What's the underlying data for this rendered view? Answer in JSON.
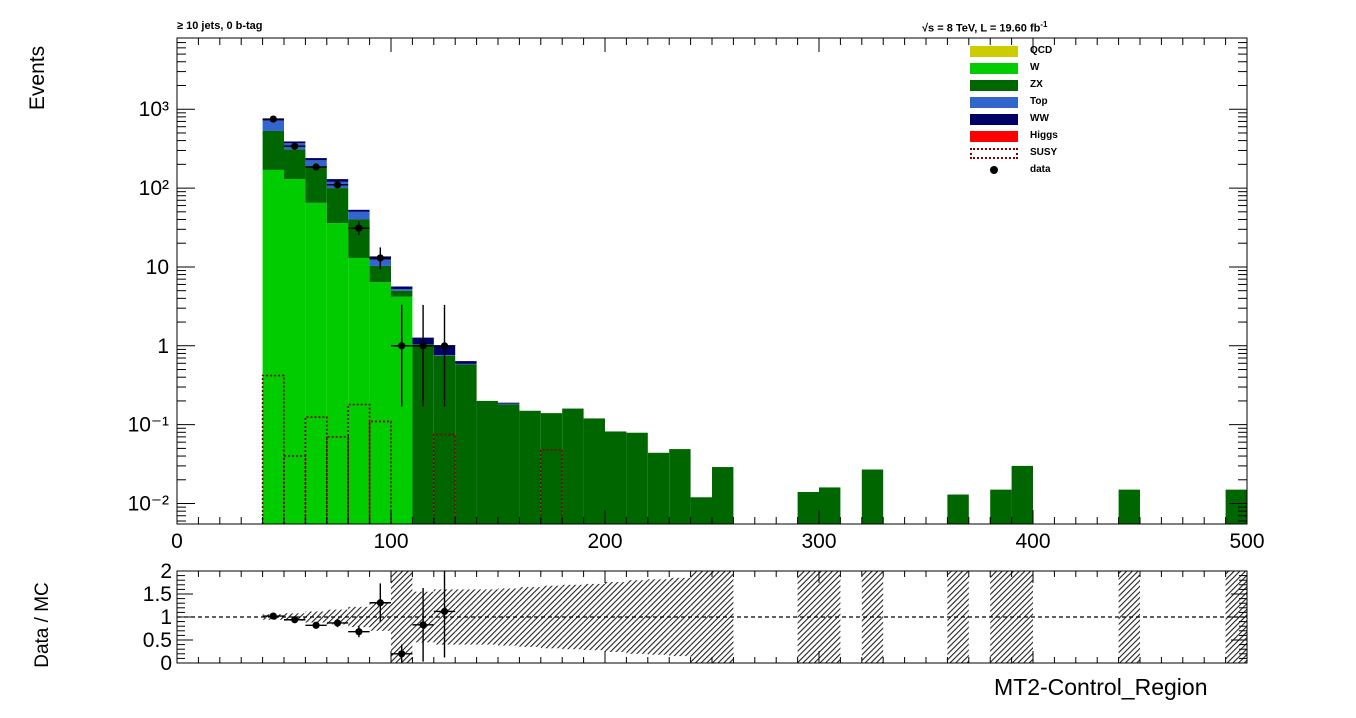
{
  "header": {
    "left": "≥ 10 jets, 0 b-tag",
    "right_prefix": "√s = 8 TeV, L = 19.60 fb",
    "right_sup": "-1"
  },
  "chart_data": [
    {
      "type": "bar",
      "subtype": "stacked-histogram-log",
      "ylabel": "Events",
      "yscale": "log",
      "ylim": [
        0.0055,
        8000
      ],
      "xlim": [
        0,
        500
      ],
      "x_ticks": [
        "0",
        "100",
        "200",
        "300",
        "400",
        "500"
      ],
      "y_ticks": [
        "10⁻²",
        "10⁻¹",
        "1",
        "10",
        "10²",
        "10³"
      ],
      "bin_width": 10,
      "bin_low_edges": [
        40,
        50,
        60,
        70,
        80,
        90,
        100,
        110,
        120,
        130,
        140,
        150,
        160,
        170,
        180,
        190,
        200,
        210,
        220,
        230,
        240,
        250,
        260,
        270,
        280,
        290,
        300,
        310,
        320,
        330,
        340,
        350,
        360,
        370,
        380,
        390,
        400,
        410,
        420,
        430,
        440,
        450,
        460,
        470,
        480,
        490
      ],
      "series": [
        {
          "name": "QCD",
          "color": "#cccc00",
          "values": [
            0,
            0,
            0,
            0,
            0,
            0,
            0,
            0,
            0,
            0,
            0,
            0,
            0,
            0,
            0,
            0,
            0,
            0,
            0,
            0,
            0,
            0,
            0,
            0,
            0,
            0,
            0,
            0,
            0,
            0,
            0,
            0,
            0,
            0,
            0,
            0,
            0,
            0,
            0,
            0,
            0,
            0,
            0,
            0,
            0,
            0
          ]
        },
        {
          "name": "W",
          "color": "#00cc00",
          "values": [
            170,
            130,
            65,
            36,
            13,
            6.4,
            4.2,
            0,
            0,
            0,
            0,
            0,
            0,
            0,
            0,
            0,
            0,
            0,
            0,
            0,
            0,
            0,
            0,
            0,
            0,
            0,
            0,
            0,
            0,
            0,
            0,
            0,
            0,
            0,
            0,
            0,
            0,
            0,
            0,
            0,
            0,
            0,
            0,
            0,
            0,
            0
          ]
        },
        {
          "name": "ZX",
          "color": "#006600",
          "values": [
            360,
            180,
            120,
            64,
            27,
            3.9,
            0.8,
            1.05,
            0.75,
            0.58,
            0.2,
            0.18,
            0.15,
            0.14,
            0.16,
            0.12,
            0.082,
            0.079,
            0.044,
            0.049,
            0.012,
            0.029,
            0,
            0,
            0,
            0.014,
            0.016,
            0,
            0.027,
            0,
            0,
            0,
            0.013,
            0,
            0.015,
            0.03,
            0,
            0,
            0,
            0,
            0.015,
            0,
            0,
            0,
            0,
            0.015
          ]
        },
        {
          "name": "Top",
          "color": "#3366cc",
          "values": [
            190,
            60,
            40,
            20,
            10,
            2.1,
            0.25,
            0,
            0.01,
            0.01,
            0,
            0.005,
            0,
            0,
            0,
            0,
            0,
            0,
            0,
            0,
            0,
            0,
            0,
            0,
            0,
            0,
            0,
            0,
            0,
            0,
            0,
            0,
            0,
            0,
            0,
            0,
            0,
            0,
            0,
            0,
            0,
            0,
            0,
            0,
            0,
            0
          ]
        },
        {
          "name": "WW",
          "color": "#000066",
          "values": [
            30,
            20,
            15,
            10,
            3,
            1.2,
            0.4,
            0.22,
            0.25,
            0.05,
            0,
            0.005,
            0,
            0,
            0,
            0,
            0,
            0,
            0,
            0,
            0,
            0,
            0,
            0,
            0,
            0,
            0,
            0,
            0,
            0,
            0,
            0,
            0,
            0,
            0,
            0,
            0,
            0,
            0,
            0,
            0,
            0,
            0,
            0,
            0,
            0
          ]
        },
        {
          "name": "Higgs",
          "color": "#ff0000",
          "values": [
            0,
            0,
            0,
            0,
            0,
            0,
            0,
            0,
            0,
            0,
            0,
            0,
            0,
            0,
            0,
            0,
            0,
            0,
            0,
            0,
            0,
            0,
            0,
            0,
            0,
            0,
            0,
            0,
            0,
            0,
            0,
            0,
            0,
            0,
            0,
            0,
            0,
            0,
            0,
            0,
            0,
            0,
            0,
            0,
            0,
            0
          ]
        },
        {
          "name": "SUSY",
          "color": "#800000",
          "style": "dotted-outline",
          "values": [
            0.42,
            0.04,
            0.125,
            0.07,
            0.18,
            0.11,
            0,
            0,
            0.075,
            0,
            0,
            0,
            0,
            0.048,
            0,
            0,
            0,
            0,
            0,
            0,
            0,
            0,
            0,
            0,
            0,
            0,
            0,
            0,
            0,
            0,
            0,
            0,
            0,
            0,
            0,
            0,
            0,
            0,
            0,
            0,
            0,
            0,
            0,
            0,
            0,
            0
          ]
        }
      ],
      "data_points": {
        "name": "data",
        "x": [
          45,
          55,
          65,
          75,
          85,
          95,
          105,
          115,
          125
        ],
        "y": [
          750,
          340,
          185,
          110,
          31,
          13,
          1,
          1,
          1
        ],
        "yerr_low": [
          27,
          18,
          14,
          10,
          5.5,
          3.6,
          0.83,
          0.83,
          0.83
        ],
        "yerr_high": [
          28,
          19,
          14,
          11,
          6.6,
          4.7,
          2.3,
          2.3,
          2.3
        ]
      },
      "legend": [
        "QCD",
        "W",
        "ZX",
        "Top",
        "WW",
        "Higgs",
        "SUSY",
        "data"
      ],
      "legend_position": "top-right"
    },
    {
      "type": "scatter",
      "subtype": "ratio",
      "ylabel": "Data / MC",
      "xlabel": "MT2-Control_Region",
      "xlim": [
        0,
        500
      ],
      "ylim": [
        0,
        2
      ],
      "y_ticks": [
        "0",
        "0.5",
        "1",
        "1.5",
        "2"
      ],
      "reference_line": 1,
      "x": [
        45,
        55,
        65,
        75,
        85,
        95,
        105,
        115,
        125
      ],
      "y": [
        1.02,
        0.94,
        0.82,
        0.87,
        0.68,
        1.31,
        0.2,
        0.83,
        1.12
      ],
      "yerr": [
        0.04,
        0.06,
        0.06,
        0.09,
        0.12,
        0.42,
        0.2,
        0.8,
        1.0
      ],
      "mc_uncertainty_halfwidth": [
        0.06,
        0.08,
        0.12,
        0.16,
        0.22,
        0.3,
        1.0,
        0.55,
        0.6,
        0.6,
        0.6,
        0.62,
        0.65,
        0.68,
        0.7,
        0.72,
        0.76,
        0.8,
        0.82,
        0.85,
        1.0,
        1.0,
        1.0,
        1.0,
        1.0,
        1.0,
        1.0,
        1.0,
        1.0,
        1.0,
        1.0,
        1.0,
        1.0,
        1.0,
        1.0,
        1.0,
        1.0,
        1.0,
        1.0,
        1.0,
        1.0,
        1.0,
        1.0,
        1.0,
        1.0,
        1.0
      ],
      "mc_uncertainty_shown": [
        1,
        1,
        1,
        1,
        1,
        1,
        1,
        1,
        1,
        1,
        1,
        1,
        1,
        1,
        1,
        1,
        1,
        1,
        1,
        1,
        1,
        1,
        0,
        0,
        0,
        1,
        1,
        0,
        1,
        0,
        0,
        0,
        1,
        0,
        1,
        1,
        0,
        0,
        0,
        0,
        1,
        0,
        0,
        0,
        0,
        1
      ]
    }
  ]
}
